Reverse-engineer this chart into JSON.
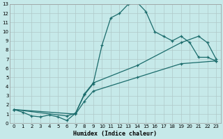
{
  "xlabel": "Humidex (Indice chaleur)",
  "xlim": [
    -0.5,
    23.5
  ],
  "ylim": [
    0,
    13
  ],
  "xticks": [
    0,
    1,
    2,
    3,
    4,
    5,
    6,
    7,
    8,
    9,
    10,
    11,
    12,
    13,
    14,
    15,
    16,
    17,
    18,
    19,
    20,
    21,
    22,
    23
  ],
  "yticks": [
    0,
    1,
    2,
    3,
    4,
    5,
    6,
    7,
    8,
    9,
    10,
    11,
    12,
    13
  ],
  "bg_color": "#c6e9e9",
  "grid_color": "#b0c8c8",
  "line_color": "#1a6b6b",
  "line1_x": [
    0,
    1,
    2,
    3,
    4,
    5,
    6,
    7,
    8,
    9,
    10,
    11,
    12,
    13,
    14,
    15,
    16,
    17,
    18,
    19,
    20,
    21,
    22,
    23
  ],
  "line1_y": [
    1.5,
    1.2,
    0.8,
    0.7,
    0.9,
    0.7,
    0.3,
    1.1,
    3.1,
    4.3,
    8.5,
    11.5,
    12.0,
    13.0,
    13.2,
    12.2,
    10.0,
    9.5,
    9.0,
    9.5,
    8.8,
    7.2,
    7.2,
    6.8
  ],
  "line2_x": [
    0,
    6,
    7,
    8,
    9,
    14,
    19,
    21,
    22,
    23
  ],
  "line2_y": [
    1.5,
    0.8,
    1.1,
    3.2,
    4.4,
    6.3,
    8.8,
    9.5,
    8.8,
    7.0
  ],
  "line3_x": [
    0,
    7,
    8,
    9,
    14,
    19,
    23
  ],
  "line3_y": [
    1.5,
    1.0,
    2.4,
    3.5,
    5.0,
    6.5,
    6.8
  ]
}
